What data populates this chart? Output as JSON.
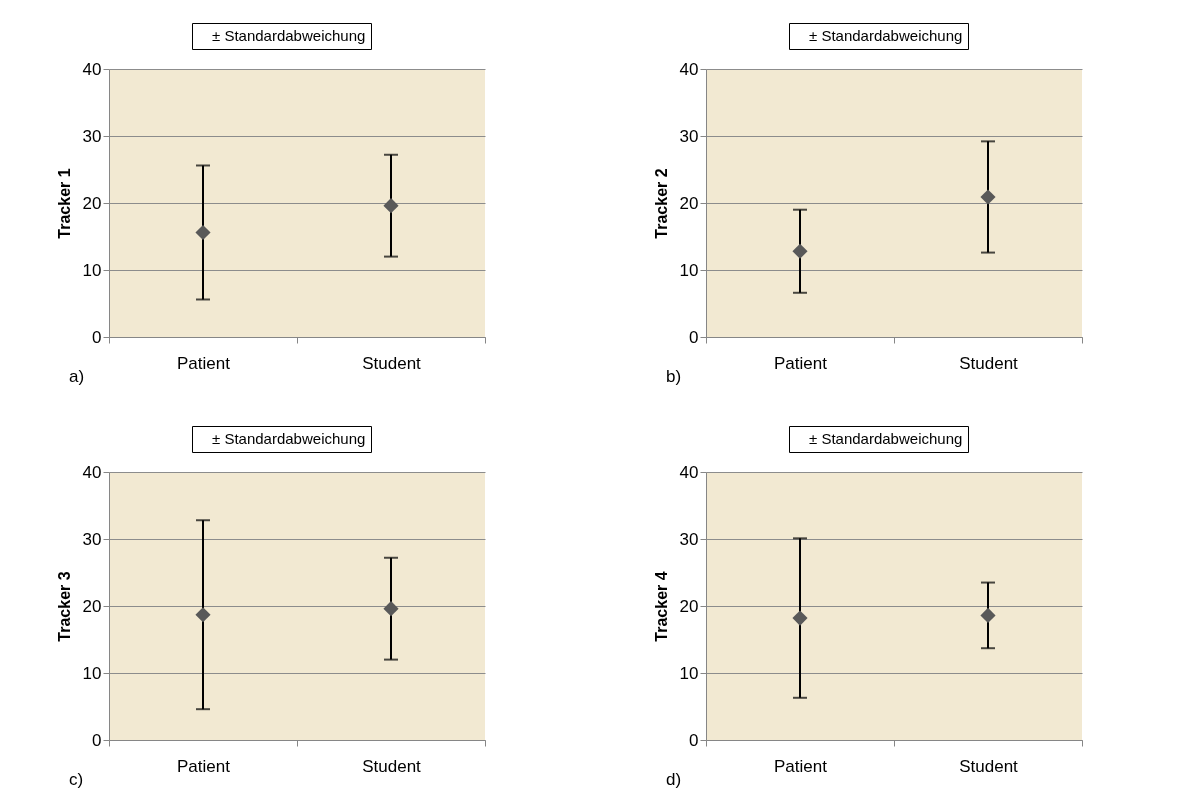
{
  "chart_data": [
    {
      "type": "scatter",
      "categories": [
        "Patient",
        "Student"
      ],
      "ylabel": "Tracker 1",
      "ylim": [
        0,
        40
      ],
      "yticks": [
        0,
        10,
        20,
        30,
        40
      ],
      "grid": "y",
      "legend": "top",
      "marker": "diamond",
      "annotations": [
        "a)"
      ],
      "series": [
        {
          "name": "± Standardabweichung",
          "color": "#595959",
          "values": [
            15.6,
            19.6
          ],
          "errors": [
            10.0,
            7.6
          ]
        }
      ]
    },
    {
      "type": "scatter",
      "categories": [
        "Patient",
        "Student"
      ],
      "ylabel": "Tracker 2",
      "ylim": [
        0,
        40
      ],
      "yticks": [
        0,
        10,
        20,
        30,
        40
      ],
      "grid": "y",
      "legend": "top",
      "marker": "diamond",
      "annotations": [
        "b)"
      ],
      "series": [
        {
          "name": "± Standardabweichung",
          "color": "#595959",
          "values": [
            12.8,
            20.9
          ],
          "errors": [
            6.2,
            8.3
          ]
        }
      ]
    },
    {
      "type": "scatter",
      "categories": [
        "Patient",
        "Student"
      ],
      "ylabel": "Tracker 3",
      "ylim": [
        0,
        40
      ],
      "yticks": [
        0,
        10,
        20,
        30,
        40
      ],
      "grid": "y",
      "legend": "top",
      "marker": "diamond",
      "annotations": [
        "c)"
      ],
      "series": [
        {
          "name": "± Standardabweichung",
          "color": "#595959",
          "values": [
            18.7,
            19.6
          ],
          "errors": [
            14.1,
            7.6
          ]
        }
      ]
    },
    {
      "type": "scatter",
      "categories": [
        "Patient",
        "Student"
      ],
      "ylabel": "Tracker 4",
      "ylim": [
        0,
        40
      ],
      "yticks": [
        0,
        10,
        20,
        30,
        40
      ],
      "grid": "y",
      "legend": "top",
      "marker": "diamond",
      "annotations": [
        "d)"
      ],
      "series": [
        {
          "name": "± Standardabweichung",
          "color": "#595959",
          "values": [
            18.2,
            18.6
          ],
          "errors": [
            11.9,
            4.9
          ]
        }
      ]
    }
  ]
}
